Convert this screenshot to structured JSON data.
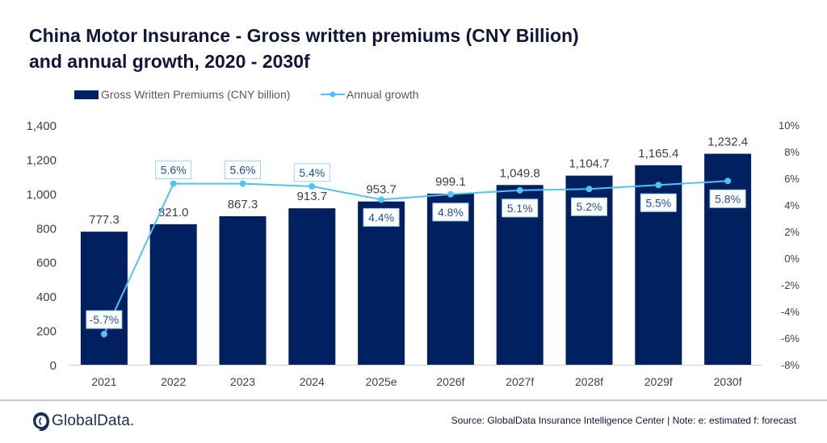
{
  "header": {
    "title_line1": "China Motor Insurance - Gross written premiums (CNY Billion)",
    "title_line2": "and annual growth, 2020 - 2030f"
  },
  "footer": {
    "brand": "GlobalData.",
    "source": "Source: GlobalData Insurance Intelligence Center | Note: e: estimated f: forecast"
  },
  "colors": {
    "bar": "#002060",
    "line": "#4fc3f7",
    "label_text": "#1f4e9c"
  },
  "chart_data": {
    "type": "bar",
    "title": "China Motor Insurance - Gross written premiums (CNY Billion) and annual growth, 2020 - 2030f",
    "categories": [
      "2021",
      "2022",
      "2023",
      "2024",
      "2025e",
      "2026f",
      "2027f",
      "2028f",
      "2029f",
      "2030f"
    ],
    "series": [
      {
        "name": "Gross Written Premiums (CNY billion)",
        "type": "bar",
        "axis": "left",
        "values": [
          777.3,
          821.0,
          867.3,
          913.7,
          953.7,
          999.1,
          1049.8,
          1104.7,
          1165.4,
          1232.4
        ],
        "labels": [
          "777.3",
          "821.0",
          "867.3",
          "913.7",
          "953.7",
          "999.1",
          "1,049.8",
          "1,104.7",
          "1,165.4",
          "1,232.4"
        ]
      },
      {
        "name": "Annual growth",
        "type": "line",
        "axis": "right",
        "values": [
          -5.7,
          5.6,
          5.6,
          5.4,
          4.4,
          4.8,
          5.1,
          5.2,
          5.5,
          5.8
        ],
        "labels": [
          "-5.7%",
          "5.6%",
          "5.6%",
          "5.4%",
          "4.4%",
          "4.8%",
          "5.1%",
          "5.2%",
          "5.5%",
          "5.8%"
        ]
      }
    ],
    "y_left": {
      "min": 0,
      "max": 1400,
      "step": 200,
      "ticks": [
        "0",
        "200",
        "400",
        "600",
        "800",
        "1,000",
        "1,200",
        "1,400"
      ]
    },
    "y_right": {
      "min": -8,
      "max": 10,
      "step": 2,
      "ticks": [
        "-8%",
        "-6%",
        "-4%",
        "-2%",
        "0%",
        "2%",
        "4%",
        "6%",
        "8%",
        "10%"
      ]
    },
    "legend": [
      "Gross Written Premiums (CNY billion)",
      "Annual growth"
    ],
    "legend_position": "top-left",
    "grid": false
  }
}
